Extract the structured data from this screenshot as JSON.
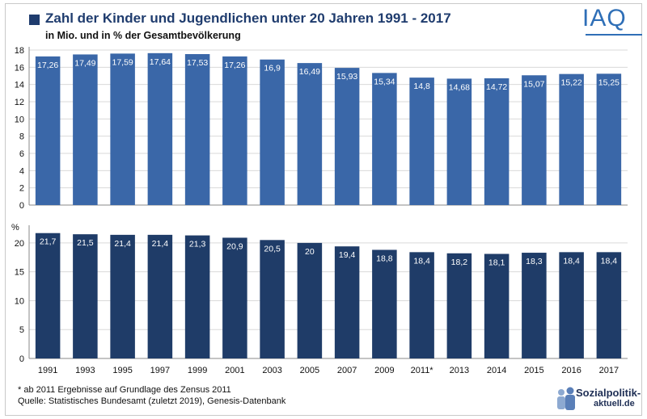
{
  "header": {
    "title": "Zahl der Kinder und Jugendlichen unter 20 Jahren 1991 - 2017",
    "subtitle": "in Mio. und in % der Gesamtbevölkerung",
    "logo": "IAQ"
  },
  "footer": {
    "note": "* ab 2011 Ergebnisse auf Grundlage des Zensus 2011",
    "source": "Quelle: Statistisches Bundesamt (zuletzt 2019), Genesis-Datenbank",
    "brand_line1": "Sozialpolitik-",
    "brand_line2": "aktuell.de"
  },
  "colors": {
    "top_bar": "#3a67a8",
    "bottom_bar": "#1f3c68",
    "title": "#1f3c6e",
    "grid": "#d9d9d9"
  },
  "chart_data": [
    {
      "type": "bar",
      "categories": [
        "1991",
        "1993",
        "1995",
        "1997",
        "1999",
        "2001",
        "2003",
        "2005",
        "2007",
        "2009",
        "2011*",
        "2013",
        "2014",
        "2015",
        "2016",
        "2017"
      ],
      "values": [
        17.26,
        17.49,
        17.59,
        17.64,
        17.53,
        17.26,
        16.9,
        16.49,
        15.93,
        15.34,
        14.8,
        14.68,
        14.72,
        15.07,
        15.22,
        15.25
      ],
      "value_labels": [
        "17,26",
        "17,49",
        "17,59",
        "17,64",
        "17,53",
        "17,26",
        "16,9",
        "16,49",
        "15,93",
        "15,34",
        "14,8",
        "14,68",
        "14,72",
        "15,07",
        "15,22",
        "15,25"
      ],
      "ylim": [
        0,
        18
      ],
      "yticks": [
        0,
        2,
        4,
        6,
        8,
        10,
        12,
        14,
        16,
        18
      ],
      "ylabel": "",
      "grid": true
    },
    {
      "type": "bar",
      "categories": [
        "1991",
        "1993",
        "1995",
        "1997",
        "1999",
        "2001",
        "2003",
        "2005",
        "2007",
        "2009",
        "2011*",
        "2013",
        "2014",
        "2015",
        "2016",
        "2017"
      ],
      "values": [
        21.7,
        21.5,
        21.4,
        21.4,
        21.3,
        20.9,
        20.5,
        20,
        19.4,
        18.8,
        18.4,
        18.2,
        18.1,
        18.3,
        18.4,
        18.4
      ],
      "value_labels": [
        "21,7",
        "21,5",
        "21,4",
        "21,4",
        "21,3",
        "20,9",
        "20,5",
        "20",
        "19,4",
        "18,8",
        "18,4",
        "18,2",
        "18,1",
        "18,3",
        "18,4",
        "18,4"
      ],
      "ylim": [
        0,
        22.5
      ],
      "yticks": [
        0,
        5,
        10,
        15,
        20
      ],
      "ylabel": "%",
      "grid": true
    }
  ]
}
